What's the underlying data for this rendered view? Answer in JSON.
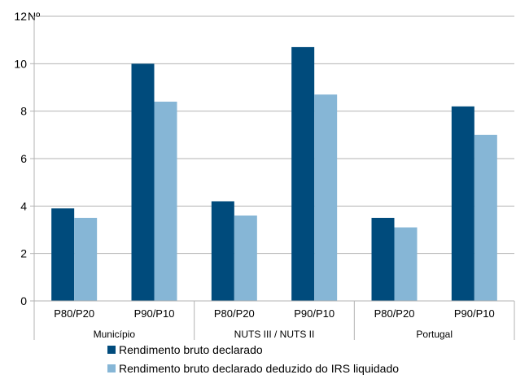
{
  "chart_data": {
    "type": "bar",
    "unit_label": "Nº",
    "groups": [
      "Município",
      "NUTS III / NUTS II",
      "Portugal"
    ],
    "categories": [
      "P80/P20",
      "P90/P10",
      "P80/P20",
      "P90/P10",
      "P80/P20",
      "P90/P10"
    ],
    "series": [
      {
        "name": "Rendimento bruto declarado",
        "color": "#004b7c",
        "values": [
          3.9,
          10.0,
          4.2,
          10.7,
          3.5,
          8.2
        ]
      },
      {
        "name": "Rendimento bruto declarado deduzido do IRS liquidado",
        "color": "#86b6d6",
        "values": [
          3.5,
          8.4,
          3.6,
          8.7,
          3.1,
          7.0
        ]
      }
    ],
    "ylim": [
      0,
      12
    ],
    "yticks": [
      0,
      2,
      4,
      6,
      8,
      10,
      12
    ],
    "grid": true,
    "legend_position": "bottom"
  }
}
